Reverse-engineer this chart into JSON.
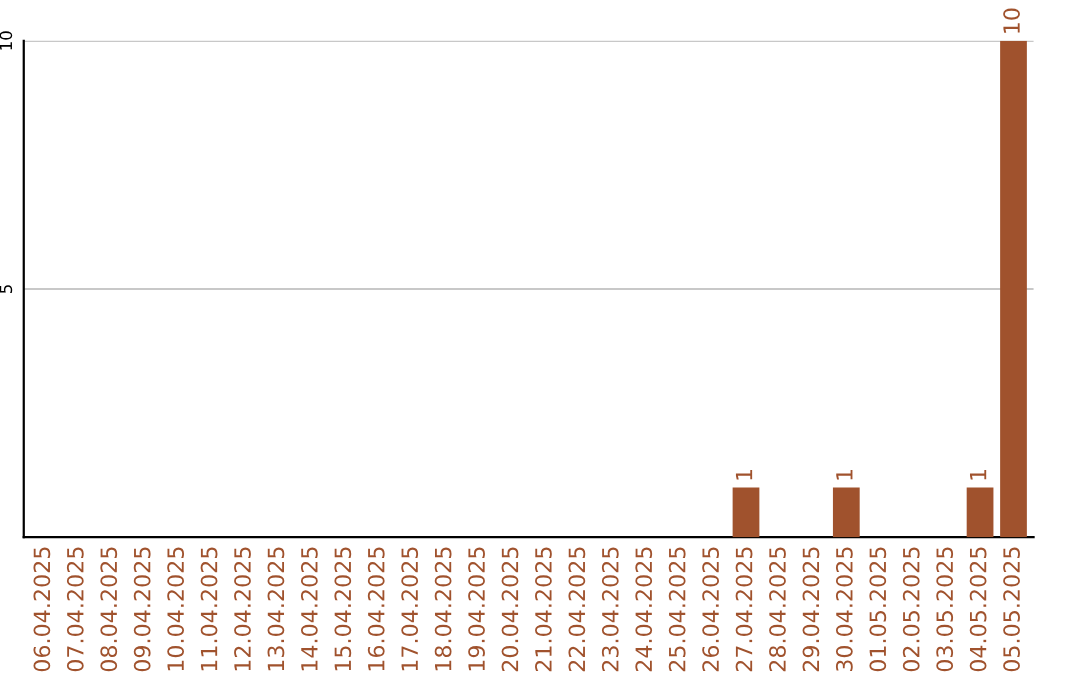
{
  "chart_data": {
    "type": "bar",
    "categories": [
      "06.04.2025",
      "07.04.2025",
      "08.04.2025",
      "09.04.2025",
      "10.04.2025",
      "11.04.2025",
      "12.04.2025",
      "13.04.2025",
      "14.04.2025",
      "15.04.2025",
      "16.04.2025",
      "17.04.2025",
      "18.04.2025",
      "19.04.2025",
      "20.04.2025",
      "21.04.2025",
      "22.04.2025",
      "23.04.2025",
      "24.04.2025",
      "25.04.2025",
      "26.04.2025",
      "27.04.2025",
      "28.04.2025",
      "29.04.2025",
      "30.04.2025",
      "01.05.2025",
      "02.05.2025",
      "03.05.2025",
      "04.05.2025",
      "05.05.2025"
    ],
    "values": [
      0,
      0,
      0,
      0,
      0,
      0,
      0,
      0,
      0,
      0,
      0,
      0,
      0,
      0,
      0,
      0,
      0,
      0,
      0,
      0,
      0,
      1,
      0,
      0,
      1,
      0,
      0,
      0,
      1,
      10
    ],
    "value_labels": [
      null,
      null,
      null,
      null,
      null,
      null,
      null,
      null,
      null,
      null,
      null,
      null,
      null,
      null,
      null,
      null,
      null,
      null,
      null,
      null,
      null,
      "1",
      null,
      null,
      "1",
      null,
      null,
      null,
      "1",
      "10"
    ],
    "color": "#a0522d",
    "ylim": [
      0,
      10
    ],
    "yticks": [
      5,
      10
    ],
    "grid": "y",
    "legend": false
  }
}
